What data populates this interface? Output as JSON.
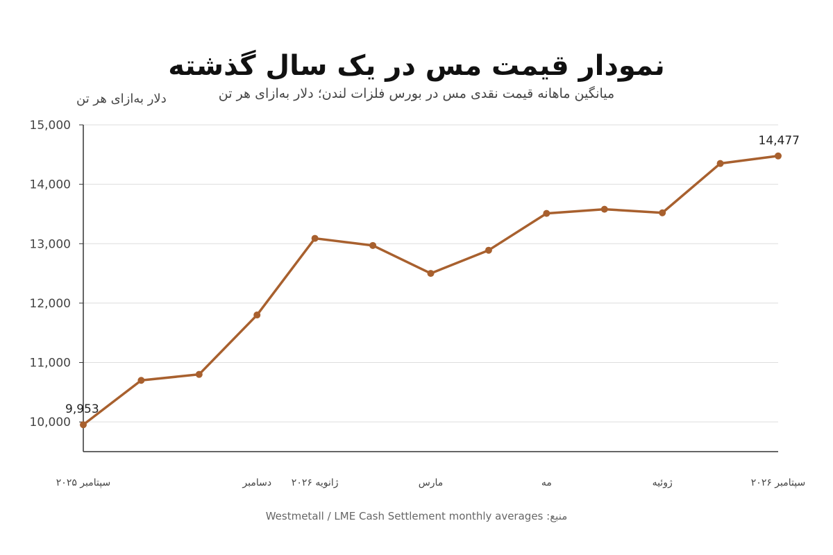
{
  "chart_data": {
    "type": "line",
    "title": "نمودار قیمت مس در یک سال گذشته",
    "subtitle": "میانگین ماهانه قیمت نقدی مس در بورس فلزات لندن؛ دلار به‌ازای هر تن",
    "ylabel": "دلار به‌ازای هر تن",
    "ylim": [
      9500,
      15000
    ],
    "yticks": [
      10000,
      11000,
      12000,
      13000,
      14000,
      15000
    ],
    "ytick_labels": [
      "10,000",
      "11,000",
      "12,000",
      "13,000",
      "14,000",
      "15,000"
    ],
    "x": [
      0,
      1,
      2,
      3,
      4,
      5,
      6,
      7,
      8,
      9,
      10,
      11,
      12
    ],
    "xticks": [
      {
        "x": 0,
        "label": "سپتامبر ۲۰۲۵"
      },
      {
        "x": 3,
        "label": "دسامبر"
      },
      {
        "x": 4,
        "label": "ژانویه ۲۰۲۶"
      },
      {
        "x": 6,
        "label": "مارس"
      },
      {
        "x": 8,
        "label": "مه"
      },
      {
        "x": 10,
        "label": "ژوئیه"
      },
      {
        "x": 12,
        "label": "سپتامبر ۲۰۲۶"
      }
    ],
    "series": [
      {
        "values": [
          9953,
          10700,
          10800,
          11800,
          13090,
          12970,
          12500,
          12890,
          13510,
          13580,
          13520,
          14350,
          14477
        ],
        "color": "#A8602E"
      }
    ],
    "annotations": [
      {
        "x": 0,
        "label": "9,953"
      },
      {
        "x": 12,
        "label": "14,477"
      }
    ],
    "grid": true,
    "grid_color": "#dddddd",
    "axis_color": "#333333"
  },
  "source": "Westmetall / LME Cash Settlement monthly averages :منبع"
}
